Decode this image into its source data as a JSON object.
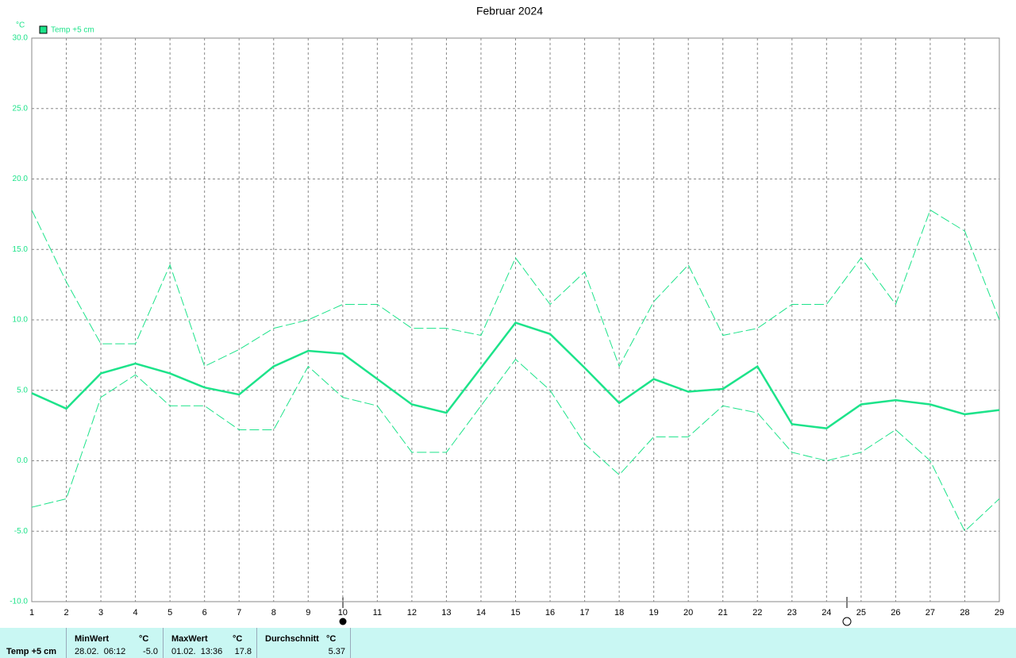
{
  "chart_data": {
    "type": "line",
    "title": "Februar 2024",
    "y_unit": "°C",
    "x": [
      1,
      2,
      3,
      4,
      5,
      6,
      7,
      8,
      9,
      10,
      11,
      12,
      13,
      14,
      15,
      16,
      17,
      18,
      19,
      20,
      21,
      22,
      23,
      24,
      25,
      26,
      27,
      28,
      29
    ],
    "xlim": [
      1,
      29
    ],
    "xticks": [
      1,
      2,
      3,
      4,
      5,
      6,
      7,
      8,
      9,
      10,
      11,
      12,
      13,
      14,
      15,
      16,
      17,
      18,
      19,
      20,
      21,
      22,
      23,
      24,
      25,
      26,
      27,
      28,
      29
    ],
    "ylim": [
      -10,
      30
    ],
    "yticks": [
      {
        "value": -10,
        "label": "-10.0"
      },
      {
        "value": -5,
        "label": "-5.0"
      },
      {
        "value": 0,
        "label": "0.0"
      },
      {
        "value": 5,
        "label": "5.0"
      },
      {
        "value": 10,
        "label": "10.0"
      },
      {
        "value": 15,
        "label": "15.0"
      },
      {
        "value": 20,
        "label": "20.0"
      },
      {
        "value": 25,
        "label": "25.0"
      },
      {
        "value": 30,
        "label": "30.0"
      }
    ],
    "grid": true,
    "legend": "top-left",
    "series": [
      {
        "name": "Temp +5 cm",
        "color": "#1de38a",
        "style": "solid",
        "values": [
          4.8,
          3.7,
          6.2,
          6.9,
          6.2,
          5.2,
          4.7,
          6.7,
          7.8,
          7.6,
          5.8,
          4.0,
          3.4,
          6.6,
          9.8,
          9.0,
          6.6,
          4.1,
          5.8,
          4.9,
          5.1,
          6.7,
          2.6,
          2.3,
          4.0,
          4.3,
          4.0,
          3.3,
          3.6
        ]
      },
      {
        "color": "#1de38a",
        "style": "dashed",
        "values": [
          17.8,
          12.7,
          8.3,
          8.3,
          13.9,
          6.7,
          7.9,
          9.4,
          10.0,
          11.1,
          11.1,
          9.4,
          9.4,
          8.9,
          14.4,
          11.1,
          13.4,
          6.7,
          11.3,
          13.9,
          8.9,
          9.4,
          11.1,
          11.1,
          14.4,
          11.1,
          17.8,
          16.3,
          10.0
        ]
      },
      {
        "color": "#1de38a",
        "style": "dashed",
        "values": [
          -3.3,
          -2.7,
          4.5,
          6.1,
          3.9,
          3.9,
          2.2,
          2.2,
          6.7,
          4.5,
          3.9,
          0.6,
          0.6,
          3.9,
          7.2,
          5.0,
          1.2,
          -1.0,
          1.7,
          1.7,
          3.9,
          3.4,
          0.6,
          0.0,
          0.6,
          2.2,
          0.0,
          -5.0,
          -2.7
        ]
      }
    ]
  },
  "footer": {
    "row_label": "Temp +5 cm",
    "columns": [
      {
        "header": "MinWert",
        "unit": "°C",
        "time": "28.02.  06:12",
        "value": "-5.0"
      },
      {
        "header": "MaxWert",
        "unit": "°C",
        "time": "01.02.  13:36",
        "value": "17.8"
      },
      {
        "header": "Durchschnitt",
        "unit": "°C",
        "value": "5.37"
      }
    ]
  }
}
